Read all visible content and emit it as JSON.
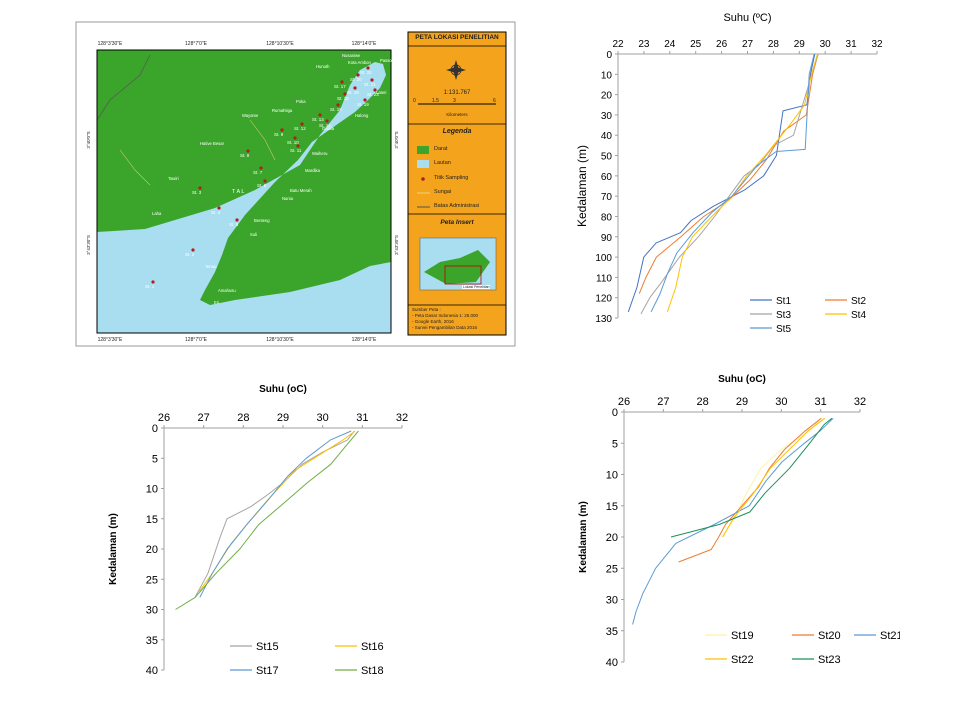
{
  "map": {
    "title": "PETA LOKASI PENELITIAN",
    "scale": "1:131.767",
    "scale_ticks": [
      "0",
      "1.5",
      "3",
      "6"
    ],
    "scale_unit": "Kilometers",
    "legend_title": "Legenda",
    "legend_items": [
      "Darat",
      "Lautan",
      "Titik Sampling",
      "Sungai",
      "Batas Administrasi"
    ],
    "insert_title": "Peta Insert",
    "insert_caption": "Lokasi Penelitian",
    "sources_title": "Sumber Peta :",
    "sources": [
      "- Peta Dasar Indonesia 1: 25.000",
      "- Google Earth, 2016",
      "- Survei Pengambilan Data 2016"
    ],
    "top_lon_labels": [
      "128°3'30\"E",
      "128°7'0\"E",
      "128°10'30\"E",
      "128°14'0\"E"
    ],
    "bottom_lon_labels": [
      "128°3'30\"E",
      "128°7'0\"E",
      "128°10'30\"E",
      "128°14'0\"E"
    ],
    "lat_labels": [
      "3°40'0\"S",
      "3°43'30\"S"
    ],
    "sea_label": "T  A  L",
    "stations": [
      "St. 1",
      "St. 2",
      "St. 3",
      "St. 4",
      "St. 5",
      "St. 6",
      "St. 7",
      "St. 8",
      "St. 9",
      "St. 10",
      "St. 11",
      "St. 12",
      "St. 13",
      "St. 14",
      "St. 15",
      "St. 16",
      "St. 17",
      "St. 18",
      "St. 19",
      "St. 20",
      "St. 21",
      "St. 22",
      "St. 23"
    ],
    "places": [
      "Nusaniwe",
      "Hunuth",
      "Poka",
      "Rumahtiga",
      "Wayame",
      "Hative Besar",
      "Tawiri",
      "Laha",
      "Halong",
      "Galala",
      "Lateri",
      "Passo",
      "Tenau",
      "Mardika",
      "Benteng",
      "Batu Merah",
      "Amahusu",
      "Eri",
      "Kota Ambon",
      "Waiheru",
      "Nania",
      "Suli"
    ]
  },
  "chart_data": [
    {
      "type": "line",
      "title": "Suhu (ºC)",
      "xlabel": "Suhu (ºC)",
      "ylabel": "Kedalaman (m)",
      "xlim": [
        22,
        32
      ],
      "ylim": [
        0,
        130
      ],
      "x_ticks": [
        "22",
        "23",
        "24",
        "25",
        "26",
        "27",
        "28",
        "29",
        "30",
        "31",
        "32"
      ],
      "y_ticks": [
        "0",
        "10",
        "20",
        "30",
        "40",
        "50",
        "60",
        "70",
        "80",
        "90",
        "100",
        "110",
        "120",
        "130"
      ],
      "y_inverted": true,
      "grid": false,
      "legend": "bottom-right",
      "series": [
        {
          "name": "St1",
          "color": "#4472c4",
          "x": [
            29.6,
            29.4,
            29.3,
            28.4,
            28.1,
            27.6,
            26.9,
            25.7,
            24.8,
            24.4,
            23.5,
            23.0,
            22.7,
            22.4
          ],
          "y": [
            0,
            10,
            25,
            28,
            50,
            60,
            67,
            75,
            82,
            88,
            93,
            100,
            115,
            127
          ]
        },
        {
          "name": "St2",
          "color": "#ed7d31",
          "x": [
            29.7,
            29.5,
            29.3,
            28.4,
            27.7,
            27.1,
            26.3,
            25.3,
            24.4,
            23.5,
            23.1,
            22.8
          ],
          "y": [
            0,
            10,
            30,
            38,
            52,
            62,
            72,
            80,
            90,
            100,
            110,
            118
          ]
        },
        {
          "name": "St3",
          "color": "#a5a5a5",
          "x": [
            29.7,
            29.5,
            28.8,
            28.0,
            27.4,
            26.9,
            26.3,
            25.7,
            25.1,
            24.4,
            23.7,
            23.2,
            22.9
          ],
          "y": [
            0,
            10,
            40,
            45,
            55,
            60,
            70,
            80,
            90,
            100,
            112,
            120,
            128
          ]
        },
        {
          "name": "St4",
          "color": "#ffc000",
          "x": [
            29.7,
            29.5,
            29.2,
            28.6,
            27.7,
            27.0,
            26.4,
            25.6,
            24.9,
            24.5,
            24.2,
            23.9
          ],
          "y": [
            0,
            10,
            25,
            35,
            50,
            60,
            70,
            80,
            90,
            100,
            115,
            127
          ]
        },
        {
          "name": "St5",
          "color": "#5b9bd5",
          "x": [
            29.6,
            29.4,
            29.2,
            28.1,
            27.4,
            26.4,
            25.6,
            24.9,
            24.3,
            23.9,
            23.6,
            23.3
          ],
          "y": [
            0,
            10,
            47,
            48,
            55,
            70,
            78,
            88,
            98,
            108,
            118,
            127
          ]
        }
      ]
    },
    {
      "type": "line",
      "title": "Suhu (oC)",
      "xlabel": "Suhu (oC)",
      "ylabel": "Kedalaman (m)",
      "xlim": [
        26,
        32
      ],
      "ylim": [
        0,
        40
      ],
      "x_ticks": [
        "26",
        "27",
        "28",
        "29",
        "30",
        "31",
        "32"
      ],
      "y_ticks": [
        "0",
        "5",
        "10",
        "15",
        "20",
        "25",
        "30",
        "35",
        "40"
      ],
      "y_inverted": true,
      "grid": false,
      "legend": "bottom",
      "series": [
        {
          "name": "St15",
          "color": "#a5a5a5",
          "x": [
            30.8,
            30.6,
            30.0,
            29.5,
            29.0,
            28.6,
            28.2,
            27.6,
            27.4,
            27.1,
            26.8
          ],
          "y": [
            0.5,
            2,
            4,
            6,
            9,
            11,
            13,
            15,
            18,
            24,
            28
          ]
        },
        {
          "name": "St16",
          "color": "#ffc000",
          "x": [
            30.8,
            30.5,
            29.8,
            29.3,
            29.0,
            28.6,
            28.1,
            27.7,
            27.2,
            26.9
          ],
          "y": [
            0.5,
            2,
            5,
            7,
            9,
            12,
            16,
            19,
            24,
            27
          ]
        },
        {
          "name": "St17",
          "color": "#5b9bd5",
          "x": [
            30.7,
            30.2,
            29.6,
            29.1,
            28.6,
            28.1,
            27.6,
            27.2,
            26.9
          ],
          "y": [
            0.5,
            2,
            5,
            8,
            12,
            16,
            20,
            24,
            28
          ]
        },
        {
          "name": "St18",
          "color": "#70ad47",
          "x": [
            30.9,
            30.6,
            30.2,
            29.6,
            29.1,
            28.4,
            27.9,
            27.3,
            26.8,
            26.3
          ],
          "y": [
            0.5,
            3,
            6,
            9,
            12,
            16,
            20,
            24,
            28,
            30
          ]
        }
      ]
    },
    {
      "type": "line",
      "title": "Suhu (oC)",
      "xlabel": "Suhu (oC)",
      "ylabel": "Kedalaman (m)",
      "xlim": [
        26,
        32
      ],
      "ylim": [
        0,
        40
      ],
      "x_ticks": [
        "26",
        "27",
        "28",
        "29",
        "30",
        "31",
        "32"
      ],
      "y_ticks": [
        "0",
        "5",
        "10",
        "15",
        "20",
        "25",
        "30",
        "35",
        "40"
      ],
      "y_inverted": true,
      "grid": false,
      "legend": "bottom",
      "series": [
        {
          "name": "St19",
          "color": "#fff2a6",
          "x": [
            31.0,
            30.7,
            30.0,
            29.5,
            29.1,
            28.8,
            28.5
          ],
          "y": [
            1,
            3,
            6,
            9,
            13,
            17,
            20
          ]
        },
        {
          "name": "St20",
          "color": "#ed7d31",
          "x": [
            31.0,
            30.6,
            30.1,
            29.7,
            29.4,
            29.0,
            28.6,
            28.4,
            28.2,
            27.4
          ],
          "y": [
            1,
            3,
            6,
            9,
            12,
            15,
            18,
            20,
            22,
            24
          ]
        },
        {
          "name": "St21",
          "color": "#5b9bd5",
          "x": [
            31.3,
            31.0,
            30.6,
            30.0,
            29.6,
            29.2,
            28.3,
            27.3,
            26.8,
            26.5,
            26.3,
            26.2
          ],
          "y": [
            1,
            3,
            5,
            8,
            11,
            15,
            18,
            21,
            25,
            29,
            32,
            34
          ]
        },
        {
          "name": "St22",
          "color": "#ffc000",
          "x": [
            31.1,
            30.7,
            30.2,
            29.7,
            29.3,
            28.8,
            28.5
          ],
          "y": [
            1,
            3,
            6,
            9,
            13,
            17,
            20
          ]
        },
        {
          "name": "St23",
          "color": "#1e8f5a",
          "x": [
            31.3,
            31.1,
            30.7,
            30.2,
            29.6,
            29.2,
            28.4,
            27.2
          ],
          "y": [
            1,
            2,
            5,
            9,
            13,
            16,
            18,
            20
          ]
        }
      ]
    }
  ]
}
